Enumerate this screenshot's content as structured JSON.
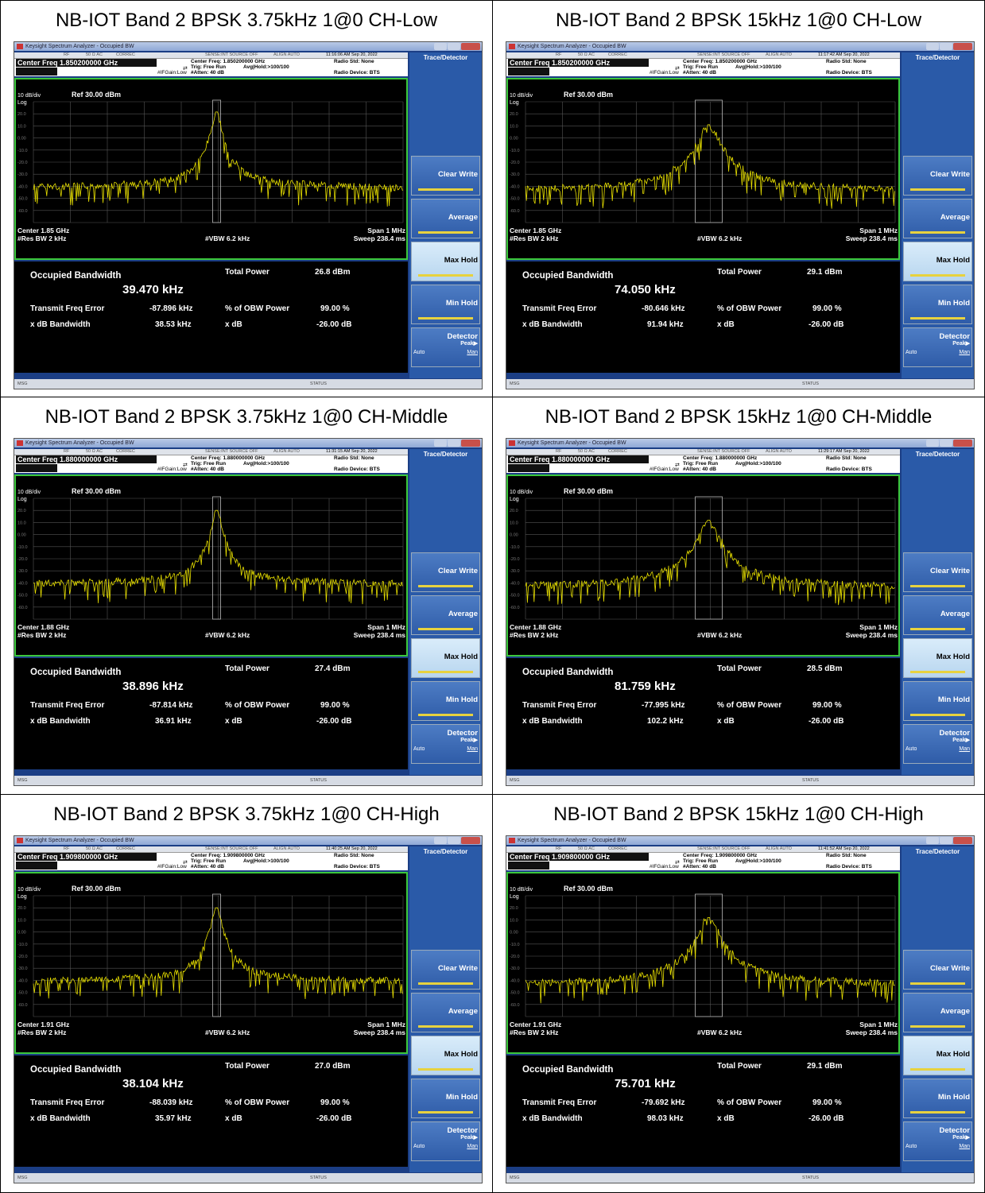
{
  "app": {
    "window_title": "Keysight Spectrum Analyzer - Occupied BW",
    "strip": [
      "RF",
      "50 Ω AC",
      "CORREC",
      "SENSE:INT SOURCE OFF",
      "ALIGN AUTO"
    ],
    "center_freq_setting_prefix": "Center Freq:",
    "trig": "Trig: Free Run",
    "avg_hold": "Avg|Hold:>100/100",
    "if_gain": "#IFGain:Low",
    "atten": "#Atten: 40 dB",
    "radio_std": "Radio Std: None",
    "radio_device": "Radio Device: BTS",
    "scale": "10 dB/div",
    "ref": "Ref 30.00 dBm",
    "log": "Log",
    "y_ticks": [
      "20.0",
      "10.0",
      "0.00",
      "-10.0",
      "-20.0",
      "-30.0",
      "-40.0",
      "-50.0",
      "-60.0"
    ],
    "res_bw": "#Res BW  2 kHz",
    "vbw": "#VBW  6.2 kHz",
    "span": "Span 1 MHz",
    "sweep": "Sweep  238.4 ms",
    "labels": {
      "occupied_bandwidth": "Occupied Bandwidth",
      "total_power": "Total Power",
      "transmit_freq_error": "Transmit Freq Error",
      "pct_obw_power": "% of OBW Power",
      "x_db_bandwidth": "x dB Bandwidth",
      "x_db": "x dB"
    },
    "softkeys": {
      "header": "Trace/Detector",
      "clear_write": "Clear Write",
      "average": "Average",
      "max_hold": "Max Hold",
      "min_hold": "Min Hold",
      "detector": "Detector",
      "peak": "Peak▶",
      "auto": "Auto",
      "man": "Man"
    },
    "msg": "MSG",
    "status": "STATUS",
    "colors": {
      "trace": "#e8e000",
      "frame": "#3cc83c",
      "softkey_bg": "#2a5aa8"
    }
  },
  "panels": [
    {
      "caption": "NB-IOT Band 2 BPSK 3.75kHz 1@0 CH-Low",
      "timestamp": "11:16:06 AM Sep 20, 2022",
      "center_freq": "Center Freq 1.850200000 GHz",
      "center_freq_value": "1.850200000 GHz",
      "center_short": "Center  1.85 GHz",
      "occupied_bw": "39.470 kHz",
      "total_power": "26.8 dBm",
      "transmit_freq_error": "-87.896 kHz",
      "pct_obw_power": "99.00 %",
      "x_db_bandwidth": "38.53 kHz",
      "x_db": "-26.00 dB",
      "chart_data": {
        "type": "line",
        "peak_dbm": 21.5,
        "noise_floor_dbm": -38,
        "width": "narrow",
        "ylim": [
          -70,
          30
        ]
      }
    },
    {
      "caption": "NB-IOT Band 2 BPSK 15kHz 1@0 CH-Low",
      "timestamp": "11:17:42 AM Sep 20, 2022",
      "center_freq": "Center Freq 1.850200000 GHz",
      "center_freq_value": "1.850200000 GHz",
      "center_short": "Center  1.85 GHz",
      "occupied_bw": "74.050 kHz",
      "total_power": "29.1 dBm",
      "transmit_freq_error": "-80.646 kHz",
      "pct_obw_power": "99.00 %",
      "x_db_bandwidth": "91.94 kHz",
      "x_db": "-26.00 dB",
      "chart_data": {
        "type": "line",
        "peak_dbm": 11,
        "noise_floor_dbm": -40,
        "width": "wide",
        "ylim": [
          -70,
          30
        ]
      }
    },
    {
      "caption": "NB-IOT Band 2 BPSK 3.75kHz 1@0 CH-Middle",
      "timestamp": "11:31:15 AM Sep 20, 2022",
      "center_freq": "Center Freq 1.880000000 GHz",
      "center_freq_value": "1.880000000 GHz",
      "center_short": "Center  1.88 GHz",
      "occupied_bw": "38.896 kHz",
      "total_power": "27.4 dBm",
      "transmit_freq_error": "-87.814 kHz",
      "pct_obw_power": "99.00 %",
      "x_db_bandwidth": "36.91 kHz",
      "x_db": "-26.00 dB",
      "chart_data": {
        "type": "line",
        "peak_dbm": 20,
        "noise_floor_dbm": -38,
        "width": "narrow",
        "ylim": [
          -70,
          30
        ]
      }
    },
    {
      "caption": "NB-IOT Band 2 BPSK 15kHz 1@0 CH-Middle",
      "timestamp": "11:29:17 AM Sep 20, 2022",
      "center_freq": "Center Freq 1.880000000 GHz",
      "center_freq_value": "1.880000000 GHz",
      "center_short": "Center  1.88 GHz",
      "occupied_bw": "81.759 kHz",
      "total_power": "28.5 dBm",
      "transmit_freq_error": "-77.995 kHz",
      "pct_obw_power": "99.00 %",
      "x_db_bandwidth": "102.2 kHz",
      "x_db": "-26.00 dB",
      "chart_data": {
        "type": "line",
        "peak_dbm": 12,
        "noise_floor_dbm": -40,
        "width": "wide",
        "ylim": [
          -70,
          30
        ]
      }
    },
    {
      "caption": "NB-IOT Band 2 BPSK 3.75kHz 1@0 CH-High",
      "timestamp": "11:40:25 AM Sep 20, 2022",
      "center_freq": "Center Freq 1.909800000 GHz",
      "center_freq_value": "1.909800000 GHz",
      "center_short": "Center  1.91 GHz",
      "occupied_bw": "38.104 kHz",
      "total_power": "27.0 dBm",
      "transmit_freq_error": "-88.039 kHz",
      "pct_obw_power": "99.00 %",
      "x_db_bandwidth": "35.97 kHz",
      "x_db": "-26.00 dB",
      "chart_data": {
        "type": "line",
        "peak_dbm": 20,
        "noise_floor_dbm": -38,
        "width": "narrow",
        "ylim": [
          -70,
          30
        ]
      }
    },
    {
      "caption": "NB-IOT Band 2 BPSK 15kHz 1@0 CH-High",
      "timestamp": "11:41:52 AM Sep 20, 2022",
      "center_freq": "Center Freq 1.909800000 GHz",
      "center_freq_value": "1.909800000 GHz",
      "center_short": "Center  1.91 GHz",
      "occupied_bw": "75.701 kHz",
      "total_power": "29.1 dBm",
      "transmit_freq_error": "-79.692 kHz",
      "pct_obw_power": "99.00 %",
      "x_db_bandwidth": "98.03 kHz",
      "x_db": "-26.00 dB",
      "chart_data": {
        "type": "line",
        "peak_dbm": 12,
        "noise_floor_dbm": -40,
        "width": "wide",
        "ylim": [
          -70,
          30
        ]
      }
    }
  ]
}
